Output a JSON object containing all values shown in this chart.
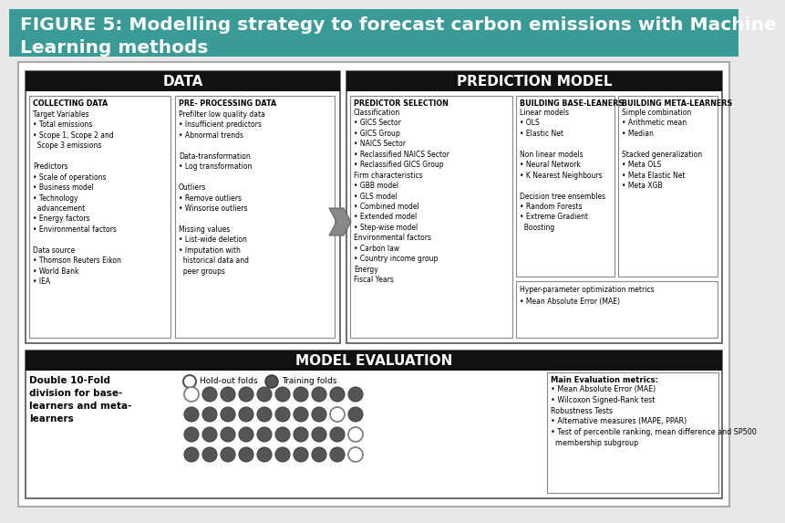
{
  "title": "FIGURE 5: Modelling strategy to forecast carbon emissions with Machine\nLearning methods",
  "title_bg": "#3a9a96",
  "title_color": "white",
  "section_header_bg": "#111111",
  "section_header_color": "white",
  "data_header": "DATA",
  "prediction_header": "PREDICTION MODEL",
  "eval_header": "MODEL EVALUATION",
  "collecting_title": "COLLECTING DATA",
  "collecting_content": "Target Variables\n• Total emissions\n• Scope 1, Scope 2 and\n  Scope 3 emissions\n\nPredictors\n• Scale of operations\n• Business model\n• Technology\n  advancement\n• Energy factors\n• Environmental factors\n\nData source\n• Thomson Reuters Eikon\n• World Bank\n• IEA",
  "preprocessing_title": "PRE- PROCESSING DATA",
  "preprocessing_content": "Prefilter low quality data\n• Insufficient predictors\n• Abnormal trends\n\nData-transformation\n• Log transformation\n\nOutliers\n• Remove outliers\n• Winsorise outliers\n\nMissing values\n• List-wide deletion\n• Imputation with\n  historical data and\n  peer groups",
  "predictor_title": "PREDICTOR SELECTION",
  "predictor_content": "Classification\n• GICS Sector\n• GICS Group\n• NAICS Sector\n• Reclassified NAICS Sector\n• Reclassified GICS Group\nFirm characteristics\n• GBB model\n• GLS model\n• Combined model\n• Extended model\n• Step-wise model\nEnvironmental factors\n• Carbon law\n• Country income group\nEnergy\nFiscal Years",
  "base_title": "BUILDING BASE-LEANERS",
  "base_content": "Linear models\n• OLS\n• Elastic Net\n\nNon linear models\n• Neural Network\n• K Nearest Neighbours\n\nDecision tree ensembles\n• Random Forests\n• Extreme Gradient\n  Boosting",
  "meta_title": "BUILDING META-LEARNERS",
  "meta_content": "Simple combination\n• Arithmetic mean\n• Median\n\nStacked generalization\n• Meta OLS\n• Meta Elastic Net\n• Meta XGB",
  "hyper_content": "Hyper-parameter optimization metrics\n• Mean Absolute Error (MAE)",
  "eval_left_text": "Double 10-Fold\ndivision for base-\nlearners and meta-\nlearners",
  "eval_legend_holdout": "Hold-out folds",
  "eval_legend_training": "Training folds",
  "eval_right_title": "Main Evaluation metrics:",
  "eval_right_content": "• Mean Absolute Error (MAE)\n• Wilcoxon Signed-Rank test\nRobustness Tests\n• Alternative measures (MAPE, PPAR)\n• Test of percentile ranking, mean difference and SP500\n  membership subgroup",
  "circle_rows": [
    [
      0,
      1,
      1,
      1,
      1,
      1,
      1,
      1,
      1,
      1
    ],
    [
      1,
      1,
      1,
      1,
      1,
      1,
      1,
      1,
      0,
      1
    ],
    [
      1,
      1,
      1,
      1,
      1,
      1,
      1,
      1,
      1,
      0
    ],
    [
      1,
      1,
      1,
      1,
      1,
      1,
      1,
      1,
      1,
      0
    ]
  ]
}
